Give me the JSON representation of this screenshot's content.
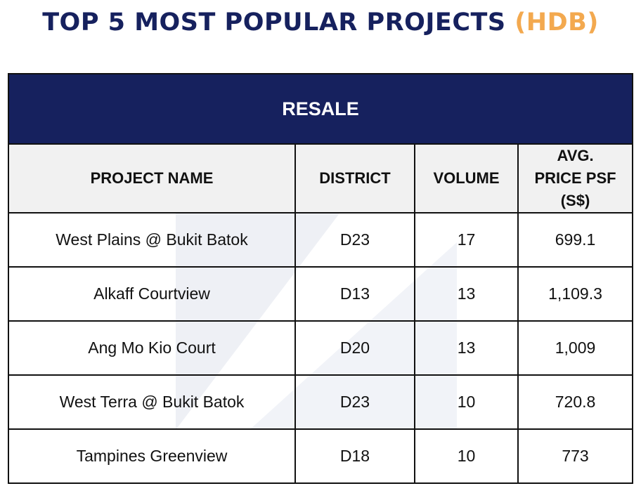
{
  "title": {
    "main": "TOP 5 MOST POPULAR PROJECTS",
    "accent": "(HDB)"
  },
  "colors": {
    "navy": "#16215e",
    "accent_orange": "#f3a94f",
    "header_gray": "#f1f1f1",
    "border": "#111111"
  },
  "table": {
    "banner": "RESALE",
    "columns": [
      "PROJECT NAME",
      "DISTRICT",
      "VOLUME",
      "AVG. PRICE PSF (S$)"
    ],
    "rows": [
      {
        "project": "West Plains @ Bukit Batok",
        "district": "D23",
        "volume": "17",
        "price": "699.1"
      },
      {
        "project": "Alkaff Courtview",
        "district": "D13",
        "volume": "13",
        "price": "1,109.3"
      },
      {
        "project": "Ang Mo Kio Court",
        "district": "D20",
        "volume": "13",
        "price": "1,009"
      },
      {
        "project": "West Terra @ Bukit Batok",
        "district": "D23",
        "volume": "10",
        "price": "720.8"
      },
      {
        "project": "Tampines Greenview",
        "district": "D18",
        "volume": "10",
        "price": "773"
      }
    ]
  }
}
